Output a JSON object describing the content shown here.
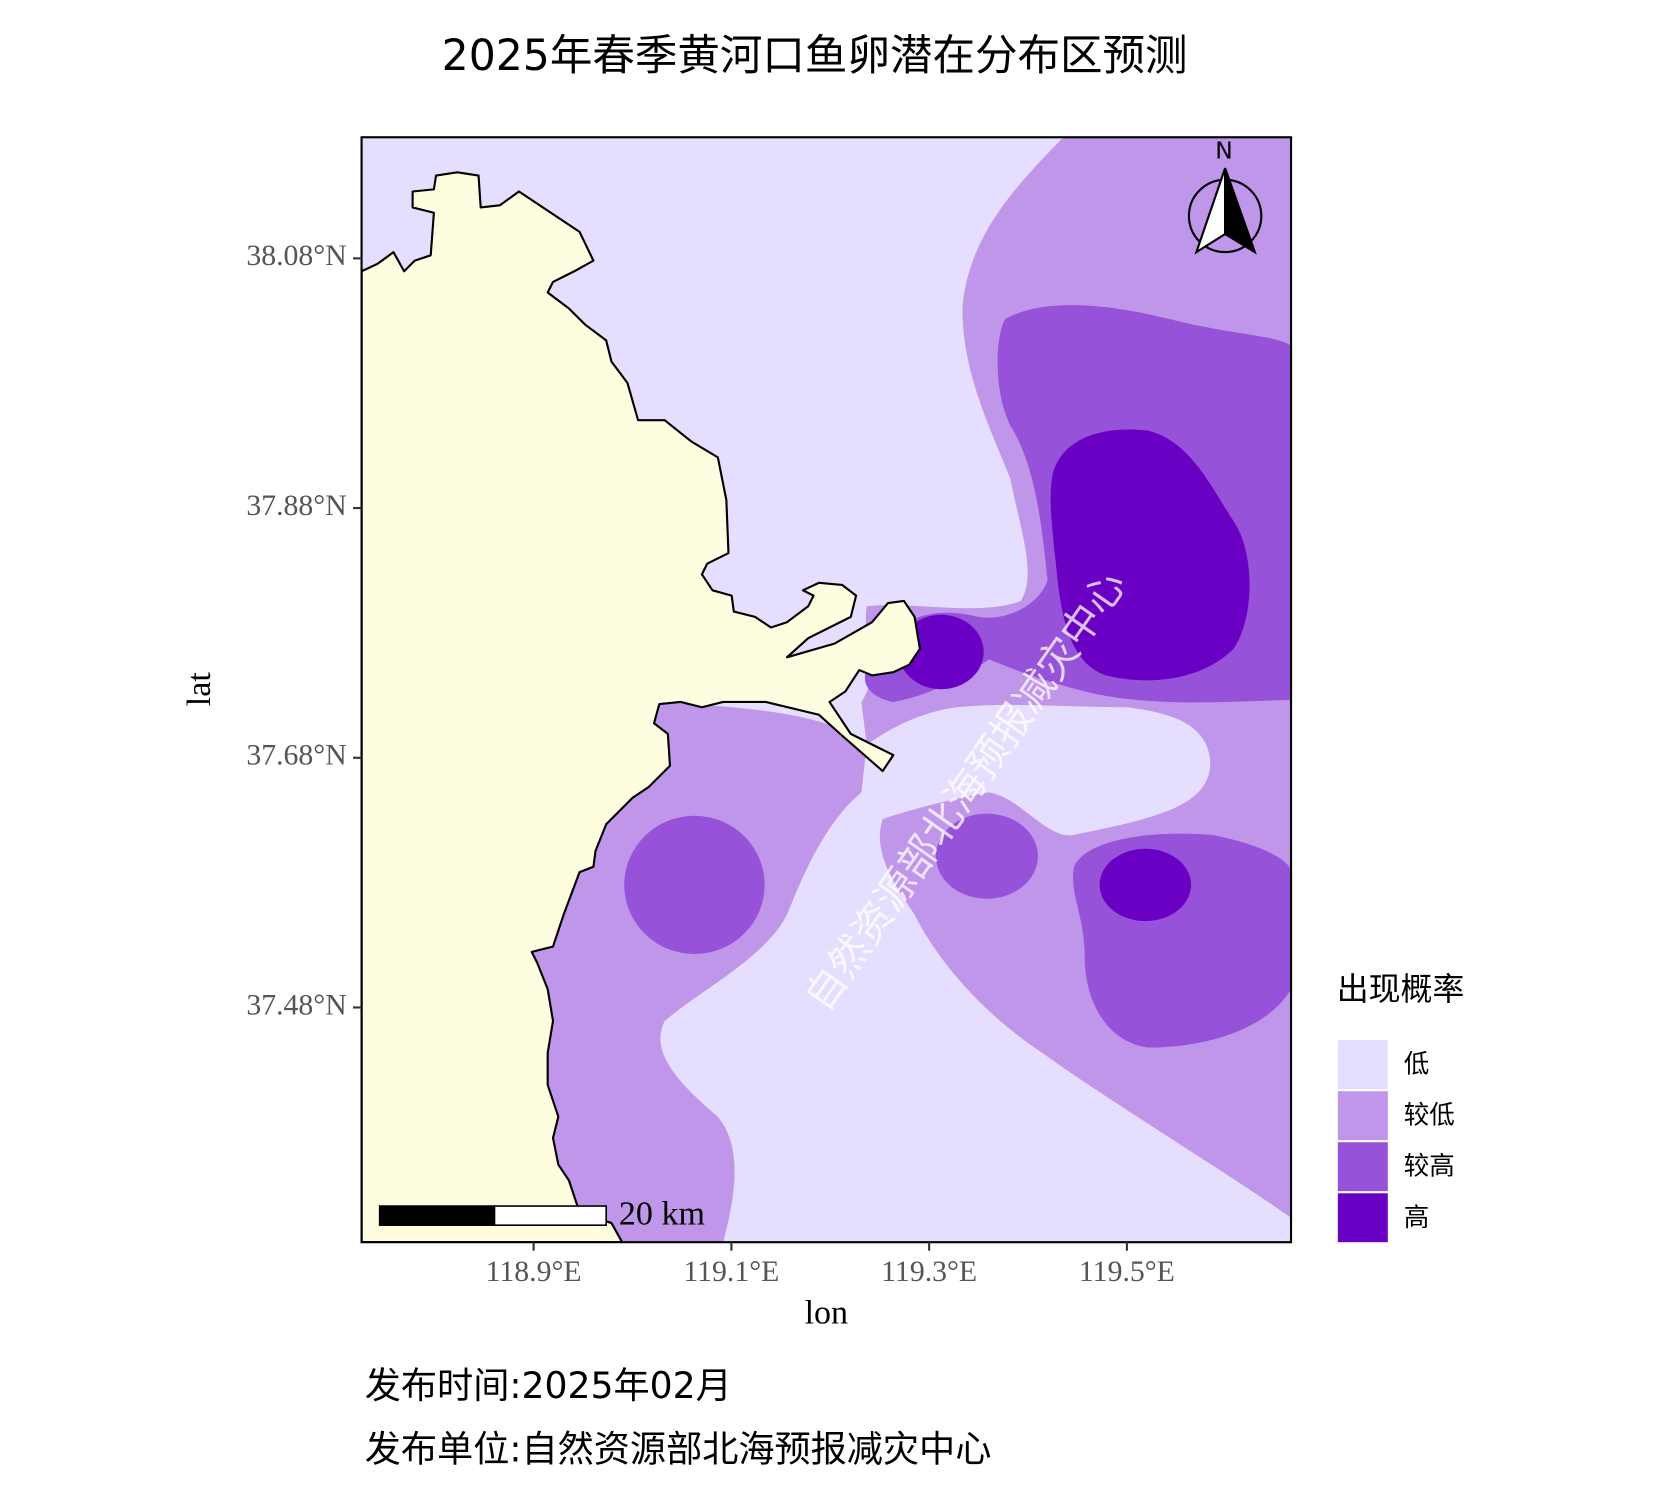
{
  "title": "2025年春季黄河口鱼卵潜在分布区预测",
  "map": {
    "xlim": [
      118.726,
      119.666
    ],
    "ylim": [
      37.292,
      38.177
    ],
    "xticks": [
      {
        "value": 118.9,
        "label": "118.9°E"
      },
      {
        "value": 119.1,
        "label": "119.1°E"
      },
      {
        "value": 119.3,
        "label": "119.3°E"
      },
      {
        "value": 119.5,
        "label": "119.5°E"
      }
    ],
    "yticks": [
      {
        "value": 37.48,
        "label": "37.48°N"
      },
      {
        "value": 37.68,
        "label": "37.68°N"
      },
      {
        "value": 37.88,
        "label": "37.88°N"
      },
      {
        "value": 38.08,
        "label": "38.08°N"
      }
    ],
    "x_label": "lon",
    "y_label": "lat",
    "north_label": "N",
    "scale_bar_label": "20 km",
    "watermark": "自然资源部北海预报减灾中心",
    "legend": {
      "title": "出现概率",
      "items": [
        {
          "label": "低",
          "color": "#e6defe"
        },
        {
          "label": "较低",
          "color": "#c096ea"
        },
        {
          "label": "较高",
          "color": "#9652d8"
        },
        {
          "label": "高",
          "color": "#6a00c4"
        }
      ]
    }
  },
  "footer": {
    "release_time": "发布时间:2025年02月",
    "publisher": "发布单位:自然资源部北海预报减灾中心"
  }
}
